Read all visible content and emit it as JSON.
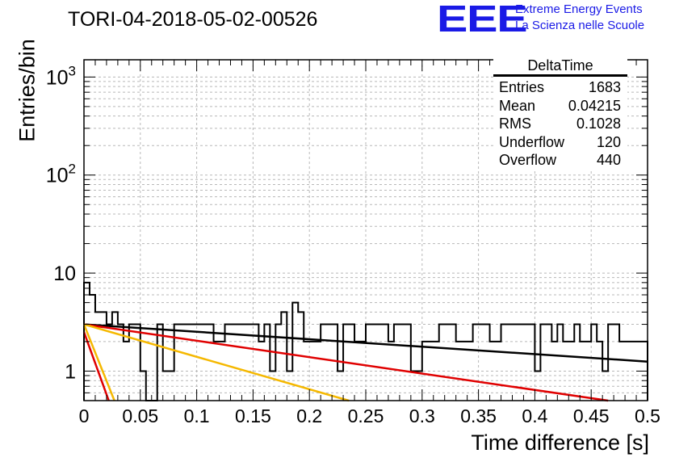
{
  "title": "TORI-04-2018-05-02-00526",
  "logo": {
    "mark": "EEE",
    "line1": "Extreme Energy Events",
    "line2": "La Scienza nelle Scuole",
    "color": "#1a1ae6"
  },
  "stats_box": {
    "title": "DeltaTime",
    "rows": [
      {
        "label": "Entries",
        "value": "1683"
      },
      {
        "label": "Mean",
        "value": "0.04215"
      },
      {
        "label": "RMS",
        "value": "0.1028"
      },
      {
        "label": "Underflow",
        "value": "120"
      },
      {
        "label": "Overflow",
        "value": "440"
      }
    ]
  },
  "chart_data": {
    "type": "line",
    "xlabel": "Time difference [s]",
    "ylabel": "Entries/bin",
    "xlim": [
      0,
      0.5
    ],
    "ylim": [
      0.5,
      1500
    ],
    "y_scale": "log",
    "grid": true,
    "x_ticks": [
      0,
      0.05,
      0.1,
      0.15,
      0.2,
      0.25,
      0.3,
      0.35,
      0.4,
      0.45,
      0.5
    ],
    "x_tick_labels": [
      "0",
      "0.05",
      "0.1",
      "0.15",
      "0.2",
      "0.25",
      "0.3",
      "0.35",
      "0.4",
      "0.45",
      "0.5"
    ],
    "y_ticks": [
      1,
      10,
      100,
      1000
    ],
    "y_tick_labels": [
      "1",
      "10",
      "10^2",
      "10^3"
    ],
    "histogram": {
      "bin_width": 0.005,
      "color": "#000000",
      "counts": [
        8,
        6,
        4,
        4,
        3,
        4,
        3,
        2,
        3,
        3,
        1,
        0,
        0,
        3,
        1,
        1,
        3,
        3,
        3,
        3,
        3,
        3,
        3,
        2,
        2,
        3,
        3,
        3,
        3,
        3,
        3,
        2,
        3,
        1,
        3,
        4,
        1,
        5,
        4,
        2,
        2,
        2,
        3,
        3,
        3,
        1,
        3,
        3,
        2,
        2,
        3,
        3,
        3,
        3,
        2,
        3,
        3,
        3,
        1,
        1,
        2,
        2,
        2,
        3,
        3,
        3,
        2,
        2,
        2,
        3,
        3,
        3,
        2,
        2,
        3,
        3,
        3,
        3,
        3,
        3,
        1,
        3,
        3,
        2,
        3,
        2,
        2,
        3,
        2,
        2,
        3,
        2,
        1,
        3,
        3,
        2,
        2,
        2,
        2,
        2
      ]
    },
    "fits": [
      {
        "color": "#000000",
        "x": [
          0,
          0.5
        ],
        "y": [
          3.0,
          1.25
        ]
      },
      {
        "color": "#e00000",
        "x": [
          0,
          0.465
        ],
        "y": [
          3.0,
          0.5
        ]
      },
      {
        "color": "#f5b800",
        "x": [
          0,
          0.235
        ],
        "y": [
          3.0,
          0.5
        ]
      },
      {
        "color": "#f5b800",
        "x": [
          0,
          0.027
        ],
        "y": [
          3.0,
          0.5
        ]
      },
      {
        "color": "#e00000",
        "x": [
          0,
          0.022
        ],
        "y": [
          2.5,
          0.5
        ]
      }
    ]
  }
}
